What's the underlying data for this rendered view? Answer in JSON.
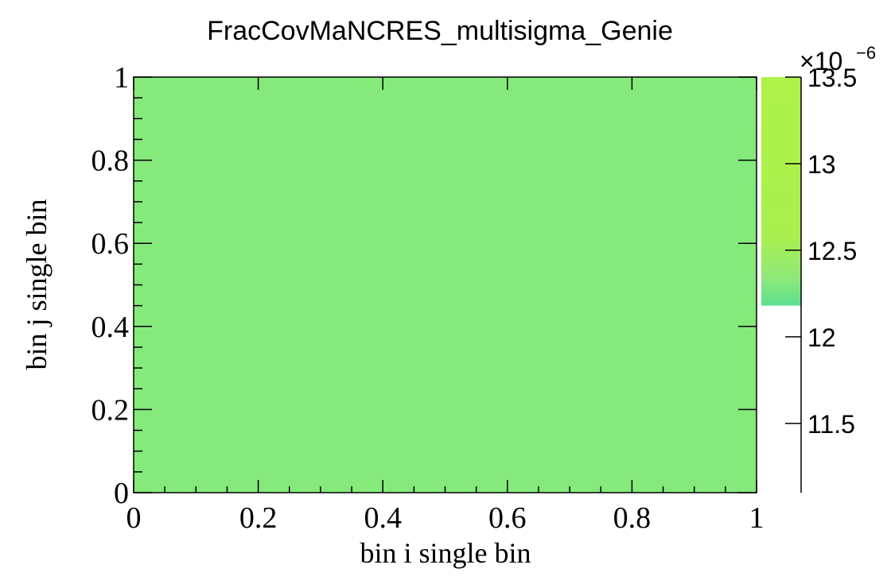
{
  "chart_data": {
    "type": "heatmap",
    "title": "FracCovMaNCRES_multisigma_Genie",
    "xlabel": "bin i single bin",
    "ylabel": "bin j single bin",
    "xlim": [
      0,
      1
    ],
    "ylim": [
      0,
      1
    ],
    "x_ticks": [
      "0",
      "0.2",
      "0.4",
      "0.6",
      "0.8",
      "1"
    ],
    "y_ticks": [
      "0",
      "0.2",
      "0.4",
      "0.6",
      "0.8",
      "1"
    ],
    "cells": [
      {
        "x_range": [
          0,
          1
        ],
        "y_range": [
          0,
          1
        ],
        "value": 1.243e-05,
        "color": "#86e97b"
      }
    ],
    "colorbar": {
      "range": [
        11.1,
        13.5
      ],
      "ticks": [
        "11.5",
        "12",
        "12.5",
        "13",
        "13.5"
      ],
      "exponent": "×10",
      "exponent_power": "−6",
      "filled_range": [
        12.18,
        13.55
      ],
      "colors": {
        "low": "#5ce08e",
        "high": "#aef24a"
      }
    }
  }
}
